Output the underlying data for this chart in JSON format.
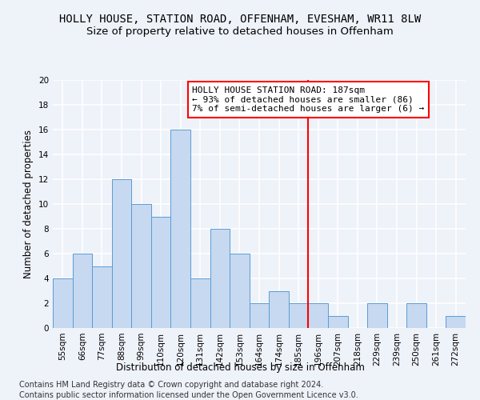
{
  "title": "HOLLY HOUSE, STATION ROAD, OFFENHAM, EVESHAM, WR11 8LW",
  "subtitle": "Size of property relative to detached houses in Offenham",
  "xlabel": "Distribution of detached houses by size in Offenham",
  "ylabel": "Number of detached properties",
  "bar_values": [
    4,
    6,
    5,
    12,
    10,
    9,
    16,
    4,
    8,
    6,
    2,
    3,
    2,
    2,
    1,
    0,
    2,
    0,
    2,
    0,
    1
  ],
  "bin_labels": [
    "55sqm",
    "66sqm",
    "77sqm",
    "88sqm",
    "99sqm",
    "110sqm",
    "120sqm",
    "131sqm",
    "142sqm",
    "153sqm",
    "164sqm",
    "174sqm",
    "185sqm",
    "196sqm",
    "207sqm",
    "218sqm",
    "229sqm",
    "239sqm",
    "250sqm",
    "261sqm",
    "272sqm"
  ],
  "bar_color": "#c6d9f0",
  "bar_edge_color": "#5b9bd5",
  "vline_x": 12.5,
  "vline_color": "red",
  "annotation_title": "HOLLY HOUSE STATION ROAD: 187sqm",
  "annotation_line1": "← 93% of detached houses are smaller (86)",
  "annotation_line2": "7% of semi-detached houses are larger (6) →",
  "annotation_box_color": "white",
  "annotation_edge_color": "red",
  "ylim": [
    0,
    20
  ],
  "yticks": [
    0,
    2,
    4,
    6,
    8,
    10,
    12,
    14,
    16,
    18,
    20
  ],
  "footer1": "Contains HM Land Registry data © Crown copyright and database right 2024.",
  "footer2": "Contains public sector information licensed under the Open Government Licence v3.0.",
  "background_color": "#eef2f9",
  "grid_color": "white",
  "title_fontsize": 10,
  "subtitle_fontsize": 9.5,
  "axis_label_fontsize": 8.5,
  "tick_fontsize": 7.5,
  "annotation_fontsize": 8,
  "footer_fontsize": 7
}
